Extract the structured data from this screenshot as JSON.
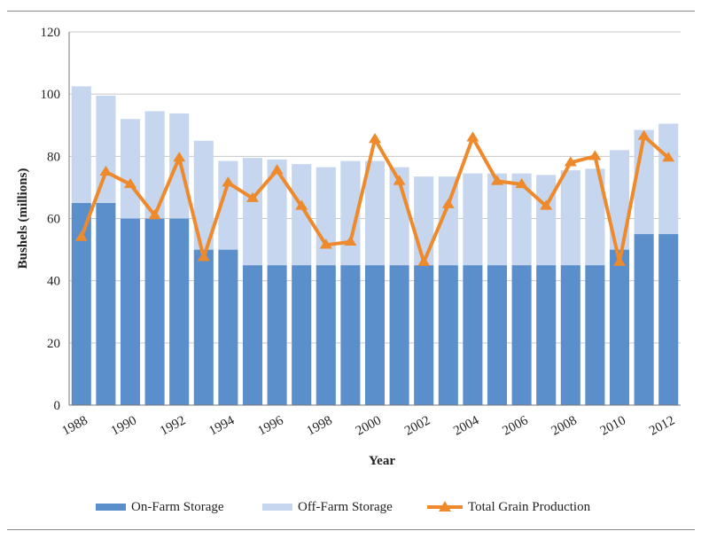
{
  "chart_data": {
    "type": "bar",
    "stacked": true,
    "xlabel": "Year",
    "ylabel": "Bushels (millions)",
    "ylim": [
      0,
      120
    ],
    "yticks": [
      0,
      20,
      40,
      60,
      80,
      100,
      120
    ],
    "categories": [
      "1988",
      "1989",
      "1990",
      "1991",
      "1992",
      "1993",
      "1994",
      "1995",
      "1996",
      "1997",
      "1998",
      "1999",
      "2000",
      "2001",
      "2002",
      "2003",
      "2004",
      "2005",
      "2006",
      "2007",
      "2008",
      "2009",
      "2010",
      "2011",
      "2012"
    ],
    "xtick_labels": [
      "1988",
      "1990",
      "1992",
      "1994",
      "1996",
      "1998",
      "2000",
      "2002",
      "2004",
      "2006",
      "2008",
      "2010",
      "2012"
    ],
    "grid": true,
    "legend_position": "bottom",
    "series": [
      {
        "name": "On-Farm Storage",
        "kind": "bar",
        "color": "#5b8fcb",
        "values": [
          65,
          65,
          60,
          60,
          60,
          50,
          50,
          45,
          45,
          45,
          45,
          45,
          45,
          45,
          45,
          45,
          45,
          45,
          45,
          45,
          45,
          45,
          50,
          55,
          55
        ]
      },
      {
        "name": "Off-Farm Storage",
        "kind": "bar",
        "color": "#c5d6ee",
        "values": [
          37.5,
          34.5,
          32,
          34.5,
          33.8,
          35,
          28.5,
          34.5,
          34,
          32.5,
          31.5,
          33.5,
          33.5,
          31.5,
          28.5,
          28.5,
          29.5,
          29.5,
          29.5,
          29,
          30.5,
          31,
          32,
          33.5,
          35.5
        ]
      },
      {
        "name": "Total Grain Production",
        "kind": "line",
        "marker": "triangle",
        "color": "#ee8a2c",
        "values": [
          54,
          75,
          71,
          61,
          79.5,
          47.5,
          71.5,
          66.5,
          75.5,
          64,
          51.5,
          52.5,
          85.5,
          72,
          46,
          64.5,
          86,
          72,
          71,
          64,
          78,
          80,
          46,
          86.5,
          79.5
        ]
      }
    ]
  }
}
